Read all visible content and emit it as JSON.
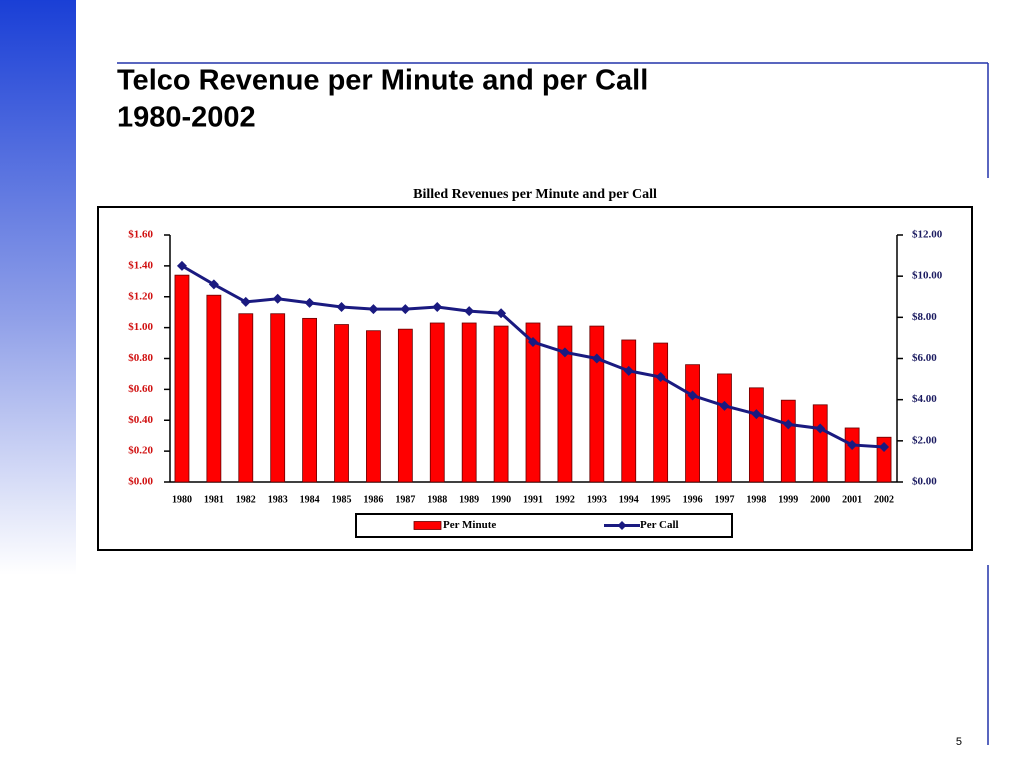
{
  "slide": {
    "title": [
      "Telco Revenue per Minute and per Call",
      "1980-2002"
    ],
    "page_number": "5"
  },
  "chart_data": {
    "type": "bar_line",
    "title": "Billed Revenues per Minute and per Call",
    "categories": [
      "1980",
      "1981",
      "1982",
      "1983",
      "1984",
      "1985",
      "1986",
      "1987",
      "1988",
      "1989",
      "1990",
      "1991",
      "1992",
      "1993",
      "1994",
      "1995",
      "1996",
      "1997",
      "1998",
      "1999",
      "2000",
      "2001",
      "2002"
    ],
    "series": [
      {
        "name": "Per Minute",
        "color": "#ff0000",
        "values": [
          1.34,
          1.21,
          1.09,
          1.09,
          1.06,
          1.02,
          0.98,
          0.99,
          1.03,
          1.03,
          1.01,
          1.03,
          1.01,
          1.01,
          0.92,
          0.9,
          0.76,
          0.7,
          0.61,
          0.53,
          0.5,
          0.35,
          0.29
        ]
      },
      {
        "name": "Per Call",
        "color": "#1a1a80",
        "axis": "y2",
        "values": [
          10.5,
          9.6,
          8.75,
          8.9,
          8.7,
          8.5,
          8.4,
          8.4,
          8.5,
          8.3,
          8.2,
          6.8,
          6.3,
          6.0,
          5.4,
          5.1,
          4.2,
          3.7,
          3.3,
          2.8,
          2.6,
          1.8,
          1.7
        ]
      }
    ],
    "ylim": [
      0,
      1.6
    ],
    "yticks": [
      {
        "value": 0,
        "label": "$0.00"
      },
      {
        "value": 0.2,
        "label": "$0.20"
      },
      {
        "value": 0.4,
        "label": "$0.40"
      },
      {
        "value": 0.6,
        "label": "$0.60"
      },
      {
        "value": 0.8,
        "label": "$0.80"
      },
      {
        "value": 1.0,
        "label": "$1.00"
      },
      {
        "value": 1.2,
        "label": "$1.20"
      },
      {
        "value": 1.4,
        "label": "$1.40"
      },
      {
        "value": 1.6,
        "label": "$1.60"
      }
    ],
    "y2lim": [
      0,
      12
    ],
    "y2ticks": [
      {
        "value": 0,
        "label": "$0.00"
      },
      {
        "value": 2,
        "label": "$2.00"
      },
      {
        "value": 4,
        "label": "$4.00"
      },
      {
        "value": 6,
        "label": "$6.00"
      },
      {
        "value": 8,
        "label": "$8.00"
      },
      {
        "value": 10,
        "label": "$10.00"
      },
      {
        "value": 12,
        "label": "$12.00"
      }
    ],
    "legend": "bottom"
  }
}
